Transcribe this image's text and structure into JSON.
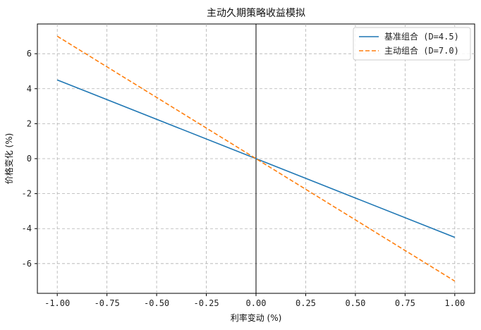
{
  "chart_data": {
    "type": "line",
    "title": "主动久期策略收益模拟",
    "xlabel": "利率变动 (%)",
    "ylabel": "价格变化 (%)",
    "xlim": [
      -1.1,
      1.1
    ],
    "ylim": [
      -7.7,
      7.7
    ],
    "xticks": [
      -1.0,
      -0.75,
      -0.5,
      -0.25,
      0.0,
      0.25,
      0.5,
      0.75,
      1.0
    ],
    "xtick_labels": [
      "-1.00",
      "-0.75",
      "-0.50",
      "-0.25",
      "0.00",
      "0.25",
      "0.50",
      "0.75",
      "1.00"
    ],
    "yticks": [
      -6,
      -4,
      -2,
      0,
      2,
      4,
      6
    ],
    "ytick_labels": [
      "-6",
      "-4",
      "-2",
      "0",
      "2",
      "4",
      "6"
    ],
    "grid": true,
    "vertical_reference_line_x": 0.0,
    "legend_position": "top-right",
    "x": [
      -1.0,
      1.0
    ],
    "series": [
      {
        "name": "基准组合 (D=4.5)",
        "values": [
          4.5,
          -4.5
        ],
        "color": "#1f77b4",
        "style": "solid"
      },
      {
        "name": "主动组合 (D=7.0)",
        "values": [
          7.0,
          -7.0
        ],
        "color": "#ff7f0e",
        "style": "dashed"
      }
    ]
  }
}
